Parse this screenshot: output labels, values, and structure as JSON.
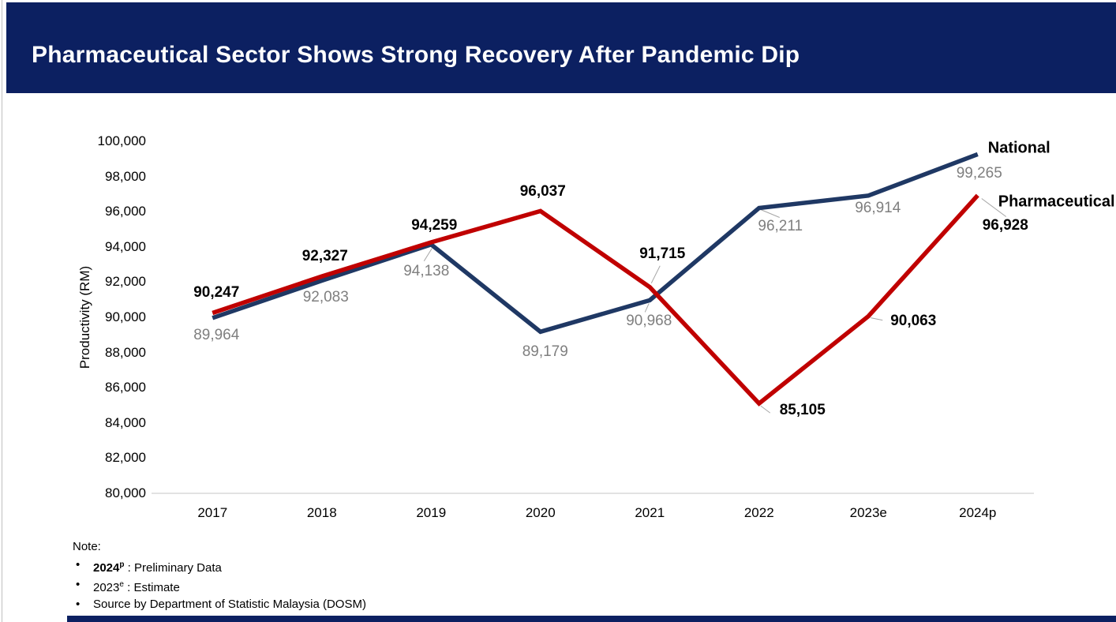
{
  "header": {
    "title": "Pharmaceutical Sector Shows Strong Recovery After Pandemic Dip"
  },
  "colors": {
    "header_bg": "#0C2061",
    "footer_bar": "#0C2061",
    "national_line": "#1F3864",
    "pharmaceutical_line": "#C00000",
    "muted_data_label": "#7F7F7F",
    "bold_data_label": "#000000",
    "axis_line": "#D9D9D9",
    "leader_line": "#A6A6A6"
  },
  "chart_data": {
    "type": "line",
    "title": "Pharmaceutical Sector Shows Strong Recovery After Pandemic Dip",
    "categories": [
      "2017",
      "2018",
      "2019",
      "2020",
      "2021",
      "2022",
      "2023e",
      "2024p"
    ],
    "xlabel": "",
    "ylabel": "Productivity (RM)",
    "ylim": [
      80000,
      100000
    ],
    "yticks": [
      80000,
      82000,
      84000,
      86000,
      88000,
      90000,
      92000,
      94000,
      96000,
      98000,
      100000
    ],
    "grid": false,
    "legend_position": "line-end-labels",
    "series": [
      {
        "name": "National",
        "color": "#1F3864",
        "label_color": "#7F7F7F",
        "label_bold": false,
        "values": [
          89964,
          92083,
          94138,
          89179,
          90968,
          96211,
          96914,
          99265
        ]
      },
      {
        "name": "Pharmaceutical",
        "color": "#C00000",
        "label_color": "#000000",
        "label_bold": true,
        "values": [
          90247,
          92327,
          94259,
          96037,
          91715,
          85105,
          90063,
          96928
        ]
      }
    ]
  },
  "notes": {
    "heading": "Note:",
    "items": [
      {
        "term": "2024",
        "sup": "p",
        "desc": " : Preliminary Data",
        "term_bold": true
      },
      {
        "term": "2023",
        "sup": "e",
        "desc": " : Estimate",
        "term_bold": false
      },
      {
        "term": "",
        "sup": "",
        "desc": "Source by Department of Statistic Malaysia (DOSM)",
        "term_bold": false
      }
    ]
  }
}
